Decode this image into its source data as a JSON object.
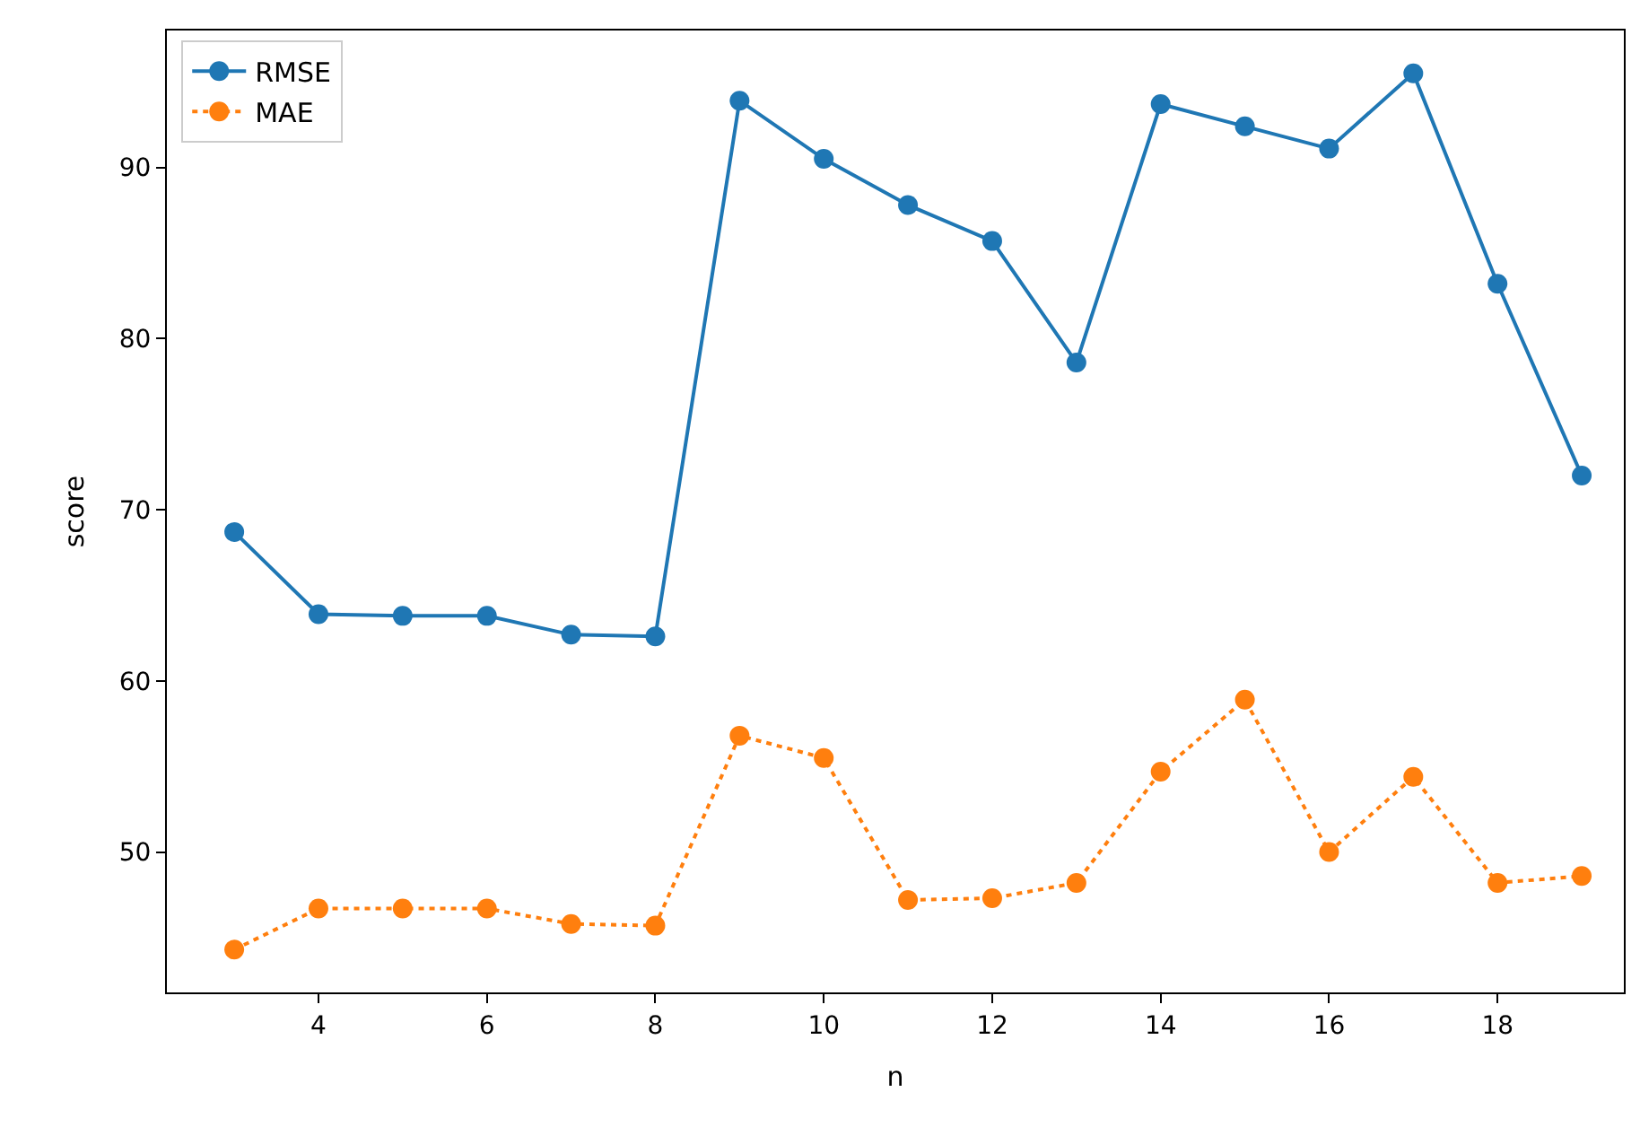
{
  "chart_data": {
    "type": "line",
    "xlabel": "n",
    "ylabel": "score",
    "x": [
      3,
      4,
      5,
      6,
      7,
      8,
      9,
      10,
      11,
      12,
      13,
      14,
      15,
      16,
      17,
      18,
      19
    ],
    "series": [
      {
        "name": "RMSE",
        "color": "#1f77b4",
        "line_style": "solid",
        "values": [
          68.7,
          63.9,
          63.8,
          63.8,
          62.7,
          62.6,
          93.9,
          90.5,
          87.8,
          85.7,
          78.6,
          93.7,
          92.4,
          91.1,
          95.5,
          83.2,
          72.0
        ]
      },
      {
        "name": "MAE",
        "color": "#ff7f0e",
        "line_style": "dotted",
        "values": [
          44.3,
          46.7,
          46.7,
          46.7,
          45.8,
          45.7,
          56.8,
          55.5,
          47.2,
          47.3,
          48.2,
          54.7,
          58.9,
          50.0,
          54.4,
          48.2,
          48.6
        ]
      }
    ],
    "marker": "circle",
    "legend": "top left",
    "xlim": [
      2.2,
      19.5
    ],
    "xticks": [
      4,
      6,
      8,
      10,
      12,
      14,
      16,
      18
    ],
    "ylim": [
      41.8,
      98.0
    ],
    "yticks": [
      50,
      60,
      70,
      80,
      90
    ]
  }
}
